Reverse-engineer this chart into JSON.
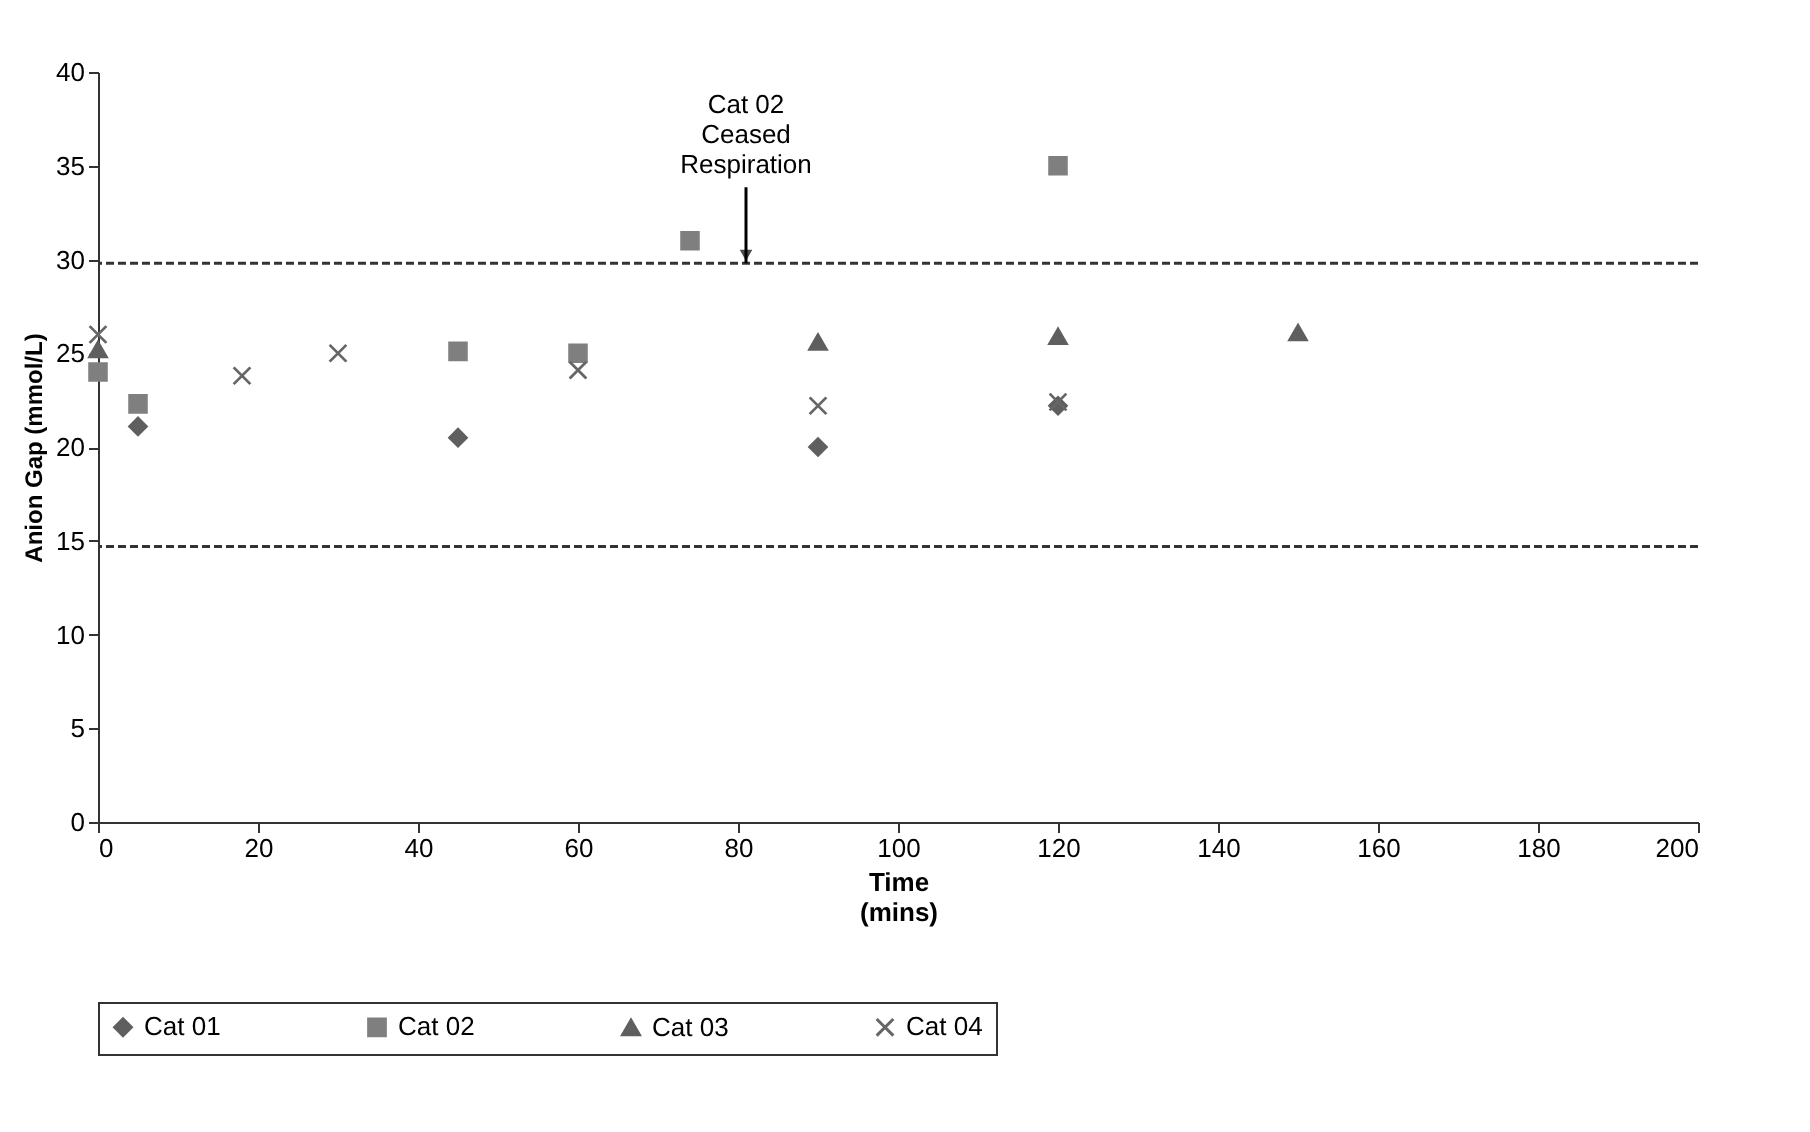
{
  "chart_data": {
    "type": "scatter",
    "xlabel": "Time\n(mins)",
    "ylabel": "Anion Gap (mmol/L)",
    "xlim": [
      0,
      200
    ],
    "xticks": [
      0,
      20,
      40,
      60,
      80,
      100,
      120,
      140,
      160,
      180,
      200
    ],
    "ylim": [
      0,
      40
    ],
    "yticks": [
      0,
      5,
      10,
      15,
      20,
      25,
      30,
      35,
      40
    ],
    "grid": false,
    "legend": "bottom",
    "series": [
      {
        "name": "Cat 01",
        "color": "#5f5f5f",
        "marker": "diamond",
        "x": [
          5,
          45,
          90,
          120
        ],
        "values": [
          21.1,
          20.5,
          20.0,
          22.2
        ]
      },
      {
        "name": "Cat 02",
        "color": "#7f7f7f",
        "marker": "square",
        "x": [
          0,
          5,
          45,
          60,
          74,
          120
        ],
        "values": [
          24.0,
          22.3,
          25.1,
          25.0,
          31.0,
          35.0
        ]
      },
      {
        "name": "Cat 03",
        "color": "#5f5f5f",
        "marker": "triangle",
        "x": [
          0,
          90,
          120,
          150
        ],
        "values": [
          25.2,
          25.6,
          25.9,
          26.1
        ]
      },
      {
        "name": "Cat 04",
        "color": "#666666",
        "marker": "cross",
        "x": [
          0,
          18,
          30,
          60,
          90,
          120
        ],
        "values": [
          26.0,
          23.8,
          25.0,
          24.1,
          22.2,
          22.4
        ]
      }
    ],
    "ref_lines": [
      {
        "axis": "y",
        "value": 29.8,
        "line_style": "dashed",
        "color": "#333333"
      },
      {
        "axis": "y",
        "value": 14.7,
        "line_style": "dashed",
        "color": "#333333"
      }
    ],
    "annotations": [
      {
        "text": "Cat 02\nCeased\nRespiration",
        "x": 81,
        "y": 29.8
      }
    ]
  }
}
